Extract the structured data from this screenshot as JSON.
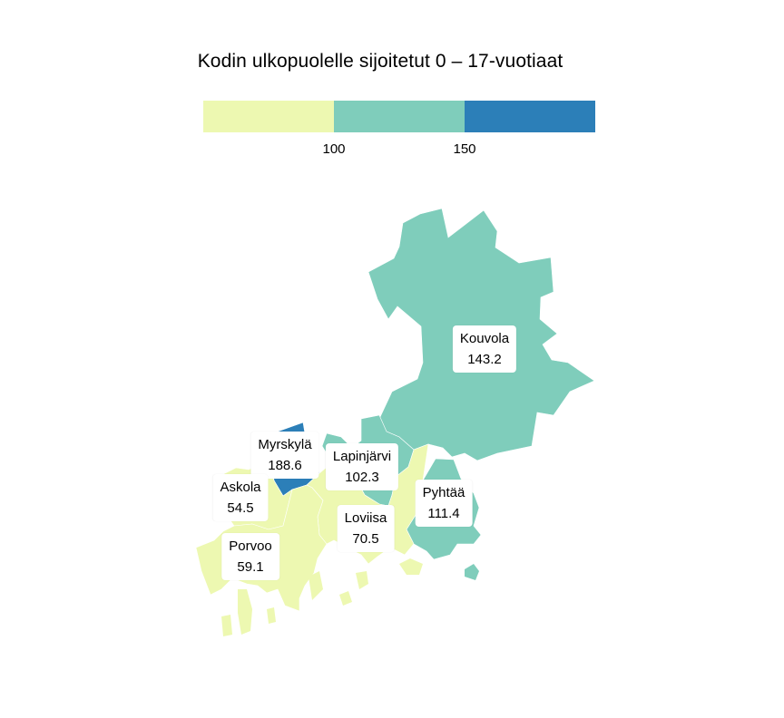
{
  "title": "Kodin ulkopuolelle sijoitetut 0 – 17-vuotiaat",
  "legend": {
    "colors": [
      "#edf8b1",
      "#7fcdbb",
      "#2c7fb8"
    ],
    "ticks": [
      "100",
      "150"
    ],
    "breaks": [
      100,
      150
    ]
  },
  "regions": [
    {
      "name": "Kouvola",
      "value": "143.2",
      "color": "#7fcdbb"
    },
    {
      "name": "Myrskylä",
      "value": "188.6",
      "color": "#2c7fb8"
    },
    {
      "name": "Lapinjärvi",
      "value": "102.3",
      "color": "#7fcdbb"
    },
    {
      "name": "Askola",
      "value": "54.5",
      "color": "#edf8b1"
    },
    {
      "name": "Pyhtää",
      "value": "111.4",
      "color": "#7fcdbb"
    },
    {
      "name": "Loviisa",
      "value": "70.5",
      "color": "#edf8b1"
    },
    {
      "name": "Porvoo",
      "value": "59.1",
      "color": "#edf8b1"
    }
  ]
}
